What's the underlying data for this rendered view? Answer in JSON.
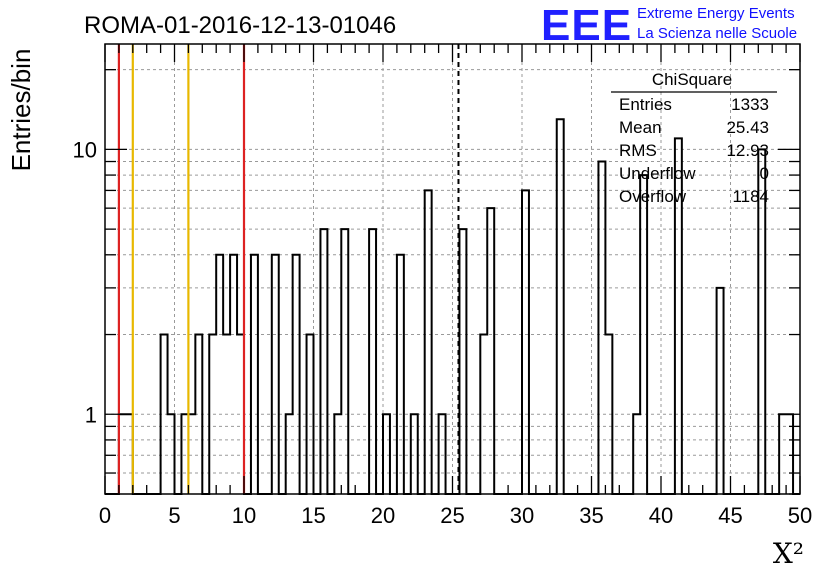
{
  "chart_data": {
    "type": "histogram",
    "title": "ROMA-01-2016-12-13-01046",
    "xlabel": "X²",
    "ylabel": "Entries/bin",
    "xlim": [
      0,
      50
    ],
    "ylim": [
      0.5,
      25
    ],
    "y_scale": "log",
    "grid": true,
    "bin_width": 0.5,
    "x_ticks": [
      0,
      5,
      10,
      15,
      20,
      25,
      30,
      35,
      40,
      45,
      50
    ],
    "y_ticks": [
      1,
      10
    ],
    "bins": [
      {
        "x": 1.0,
        "y": 1
      },
      {
        "x": 1.5,
        "y": 1
      },
      {
        "x": 4.0,
        "y": 2
      },
      {
        "x": 4.5,
        "y": 1
      },
      {
        "x": 5.5,
        "y": 1
      },
      {
        "x": 6.0,
        "y": 1
      },
      {
        "x": 6.5,
        "y": 2
      },
      {
        "x": 7.5,
        "y": 2
      },
      {
        "x": 8.0,
        "y": 4
      },
      {
        "x": 8.5,
        "y": 2
      },
      {
        "x": 9.0,
        "y": 4
      },
      {
        "x": 9.5,
        "y": 2
      },
      {
        "x": 10.5,
        "y": 4
      },
      {
        "x": 12.0,
        "y": 4
      },
      {
        "x": 13.0,
        "y": 1
      },
      {
        "x": 13.5,
        "y": 4
      },
      {
        "x": 14.5,
        "y": 2
      },
      {
        "x": 15.5,
        "y": 5
      },
      {
        "x": 16.5,
        "y": 1
      },
      {
        "x": 17.0,
        "y": 5
      },
      {
        "x": 19.0,
        "y": 5
      },
      {
        "x": 20.0,
        "y": 1
      },
      {
        "x": 21.0,
        "y": 4
      },
      {
        "x": 22.0,
        "y": 1
      },
      {
        "x": 23.0,
        "y": 7
      },
      {
        "x": 24.0,
        "y": 1
      },
      {
        "x": 25.5,
        "y": 5
      },
      {
        "x": 27.0,
        "y": 2
      },
      {
        "x": 27.5,
        "y": 6
      },
      {
        "x": 30.0,
        "y": 7
      },
      {
        "x": 32.5,
        "y": 13
      },
      {
        "x": 35.5,
        "y": 9
      },
      {
        "x": 36.0,
        "y": 2
      },
      {
        "x": 38.0,
        "y": 1
      },
      {
        "x": 38.5,
        "y": 8
      },
      {
        "x": 41.0,
        "y": 11
      },
      {
        "x": 44.0,
        "y": 3
      },
      {
        "x": 47.0,
        "y": 10
      },
      {
        "x": 48.5,
        "y": 1
      },
      {
        "x": 49.0,
        "y": 1
      }
    ],
    "reference_lines": [
      {
        "x": 1,
        "color": "#dd2222",
        "style": "solid"
      },
      {
        "x": 2,
        "color": "#e8b800",
        "style": "solid"
      },
      {
        "x": 6,
        "color": "#e8b800",
        "style": "solid"
      },
      {
        "x": 10,
        "color": "#dd2222",
        "style": "solid"
      },
      {
        "x": 25.43,
        "color": "#000000",
        "style": "dashed"
      }
    ],
    "stats_box": {
      "name": "ChiSquare",
      "rows": [
        {
          "label": "Entries",
          "value": "1333"
        },
        {
          "label": "Mean",
          "value": "25.43"
        },
        {
          "label": "RMS",
          "value": "12.93"
        },
        {
          "label": "Underflow",
          "value": "0"
        },
        {
          "label": "Overflow",
          "value": "1184"
        }
      ]
    }
  },
  "branding": {
    "logo_text": "EEE",
    "line1": "Extreme Energy Events",
    "line2": "La Scienza nelle Scuole",
    "color": "#2020ff"
  }
}
